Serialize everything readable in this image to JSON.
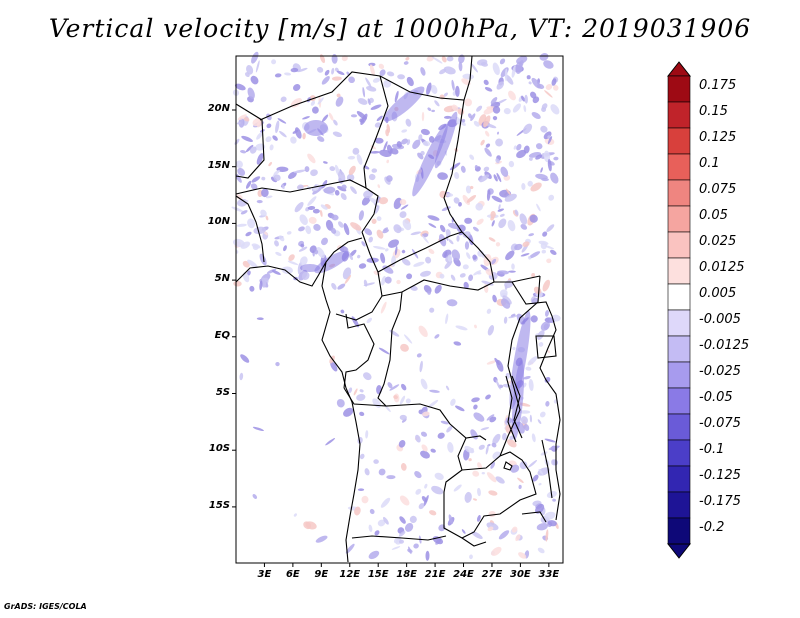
{
  "title": "Vertical velocity [m/s] at 1000hPa, VT: 2019031906",
  "credit": "GrADS: IGES/COLA",
  "map": {
    "region": "Central Africa",
    "lon_range": [
      0,
      35
    ],
    "lat_range": [
      -20,
      24.5
    ],
    "lat_ticks": [
      {
        "value": 20,
        "label": "20N"
      },
      {
        "value": 15,
        "label": "15N"
      },
      {
        "value": 10,
        "label": "10N"
      },
      {
        "value": 5,
        "label": "5N"
      },
      {
        "value": 0,
        "label": "EQ"
      },
      {
        "value": -5,
        "label": "5S"
      },
      {
        "value": -10,
        "label": "10S"
      },
      {
        "value": -15,
        "label": "15S"
      }
    ],
    "lon_ticks": [
      {
        "value": 3,
        "label": "3E"
      },
      {
        "value": 6,
        "label": "6E"
      },
      {
        "value": 9,
        "label": "9E"
      },
      {
        "value": 12,
        "label": "12E"
      },
      {
        "value": 15,
        "label": "15E"
      },
      {
        "value": 18,
        "label": "18E"
      },
      {
        "value": 21,
        "label": "21E"
      },
      {
        "value": 24,
        "label": "24E"
      },
      {
        "value": 27,
        "label": "27E"
      },
      {
        "value": 30,
        "label": "30E"
      },
      {
        "value": 33,
        "label": "33E"
      }
    ]
  },
  "colorbar": {
    "labels": [
      "0.175",
      "0.15",
      "0.125",
      "0.1",
      "0.075",
      "0.05",
      "0.025",
      "0.0125",
      "0.005",
      "-0.005",
      "-0.0125",
      "-0.025",
      "-0.05",
      "-0.075",
      "-0.1",
      "-0.125",
      "-0.175",
      "-0.2"
    ],
    "colors": [
      "#9e0a14",
      "#c0232a",
      "#d8403c",
      "#e8605a",
      "#ef8580",
      "#f5a5a0",
      "#fac3c0",
      "#fde0de",
      "#ffffff",
      "#ded8fa",
      "#c4bcf4",
      "#a79bee",
      "#8a7ae6",
      "#6a5bd8",
      "#4b3ec8",
      "#3226b2",
      "#1e1496",
      "#0e0878"
    ]
  }
}
